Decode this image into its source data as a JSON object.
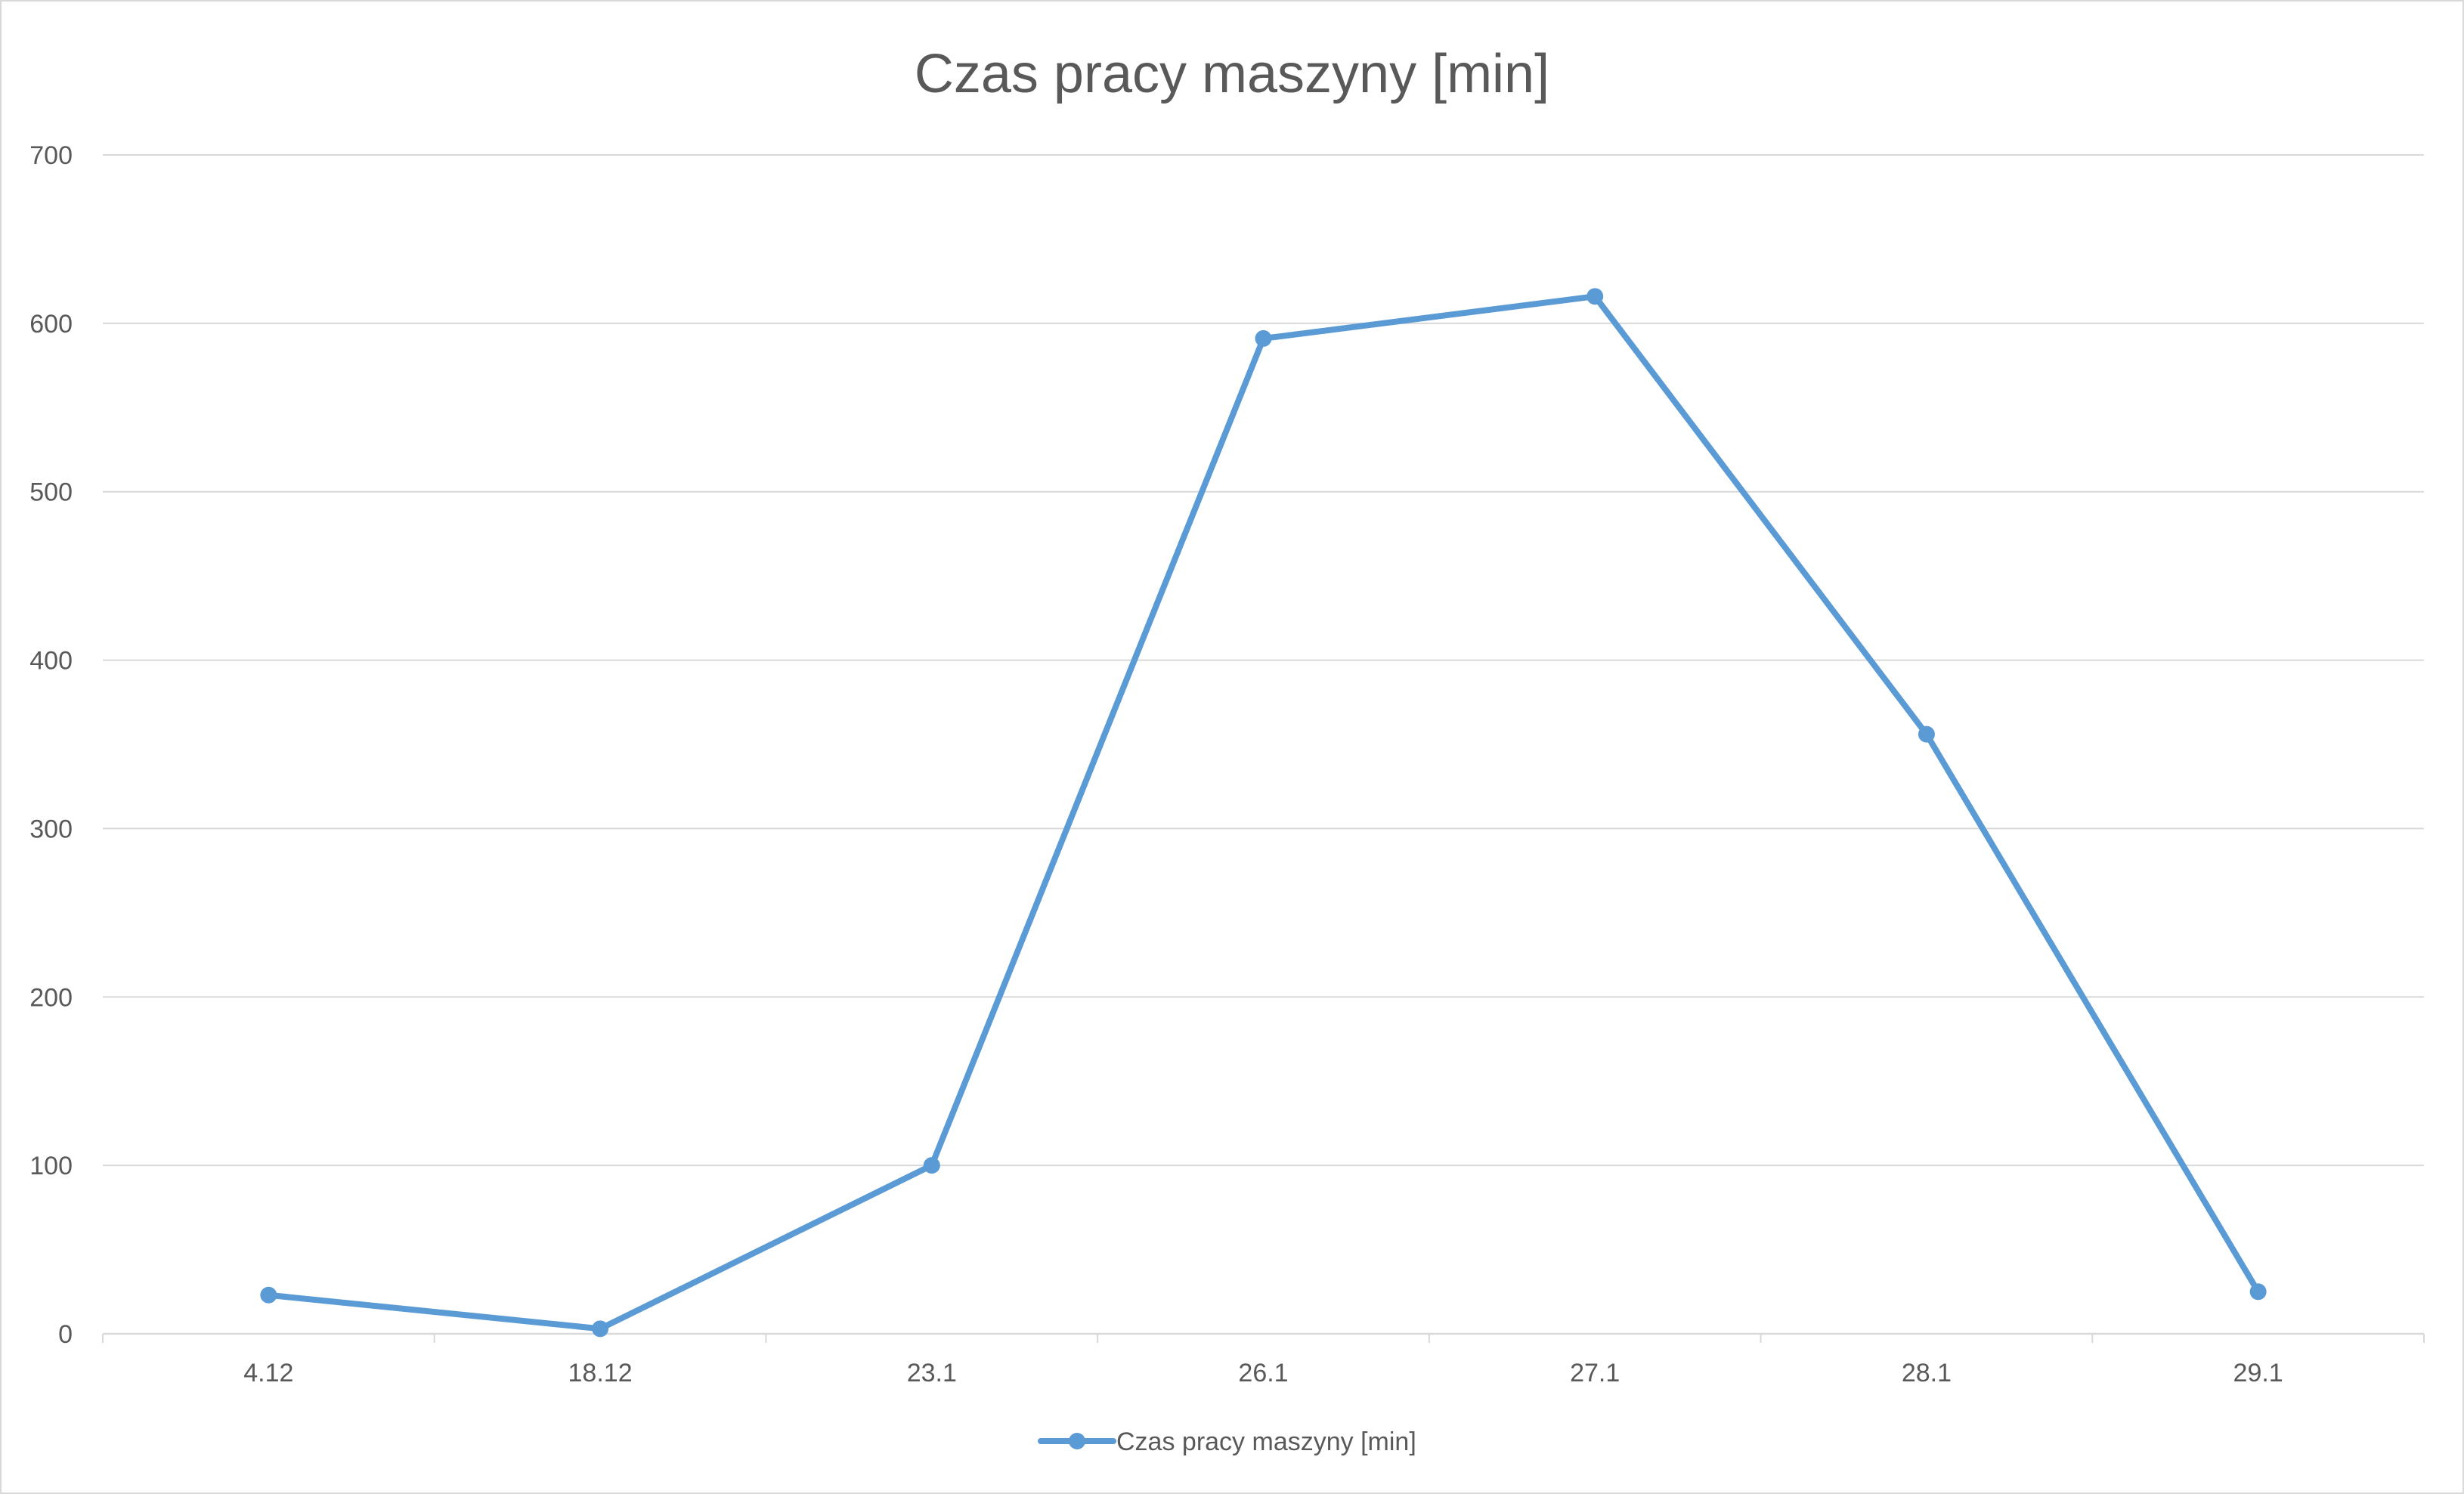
{
  "chart_data": {
    "type": "line",
    "title": "Czas pracy maszyny [min]",
    "xlabel": "",
    "ylabel": "",
    "categories": [
      "4.12",
      "18.12",
      "23.1",
      "26.1",
      "27.1",
      "28.1",
      "29.1"
    ],
    "series": [
      {
        "name": "Czas pracy maszyny [min]",
        "values": [
          23,
          3,
          100,
          591,
          616,
          356,
          25
        ],
        "color": "#5b9bd5",
        "markers": true
      }
    ],
    "ylim": [
      0,
      700
    ],
    "yticks": [
      "0",
      "100",
      "200",
      "300",
      "400",
      "500",
      "600",
      "700"
    ],
    "grid": true,
    "grid_color": "#d9d9d9",
    "legend": "bottom"
  }
}
